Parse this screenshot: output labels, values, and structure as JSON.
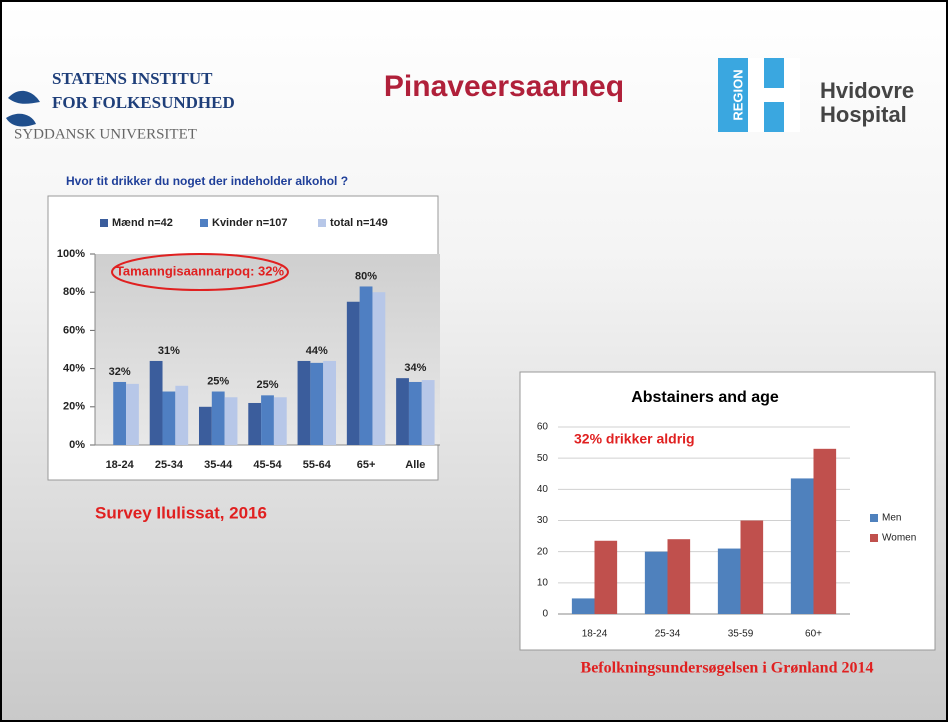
{
  "slide": {
    "logo_left": [
      "STATENS INSTITUT",
      "FOR FOLKESUNDHED",
      "SYDDANSK UNIVERSITET"
    ],
    "title": "Pinaveersaarneq",
    "logo_right": {
      "mark": "REGION",
      "name": [
        "Hvidovre",
        "Hospital"
      ]
    },
    "caption_left": "Survey Ilulissat, 2016",
    "caption_right": "Befolkningsundersøgelsen i Grønland 2014"
  },
  "chart_data": [
    {
      "type": "bar",
      "title": "Hvor tit drikker du noget der indeholder alkohol ?",
      "categories": [
        "18-24",
        "25-34",
        "35-44",
        "45-54",
        "55-64",
        "65+",
        "Alle"
      ],
      "series": [
        {
          "name": "Mænd n=42",
          "color": "#3b5d9c",
          "values": [
            0,
            44,
            20,
            22,
            44,
            75,
            35
          ]
        },
        {
          "name": "Kvinder n=107",
          "color": "#4f7fc2",
          "values": [
            33,
            28,
            28,
            26,
            43,
            83,
            33
          ]
        },
        {
          "name": "total n=149",
          "color": "#b7c7e8",
          "values": [
            32,
            31,
            25,
            25,
            44,
            80,
            34
          ],
          "value_labels": [
            "32%",
            "31%",
            "25%",
            "25%",
            "44%",
            "80%",
            "34%"
          ]
        }
      ],
      "ylim": [
        0,
        100
      ],
      "yticks": [
        {
          "value": 0,
          "label": "0%"
        },
        {
          "value": 20,
          "label": "20%"
        },
        {
          "value": 40,
          "label": "40%"
        },
        {
          "value": 60,
          "label": "60%"
        },
        {
          "value": 80,
          "label": "80%"
        },
        {
          "value": 100,
          "label": "100%"
        }
      ],
      "grid": false,
      "legend": "top",
      "annotation": "Tamanngisaannarpoq: 32%"
    },
    {
      "type": "bar",
      "title": "Abstainers and age",
      "categories": [
        "18-24",
        "25-34",
        "35-59",
        "60+"
      ],
      "series": [
        {
          "name": "Men",
          "color": "#4f81bd",
          "values": [
            5,
            20,
            21,
            43.5
          ]
        },
        {
          "name": "Women",
          "color": "#c0504d",
          "values": [
            23.5,
            24,
            30,
            53
          ]
        }
      ],
      "ylim": [
        0,
        60
      ],
      "yticks": [
        0,
        10,
        20,
        30,
        40,
        50,
        60
      ],
      "grid": true,
      "legend": "right",
      "annotation": "32% drikker aldrig"
    }
  ]
}
